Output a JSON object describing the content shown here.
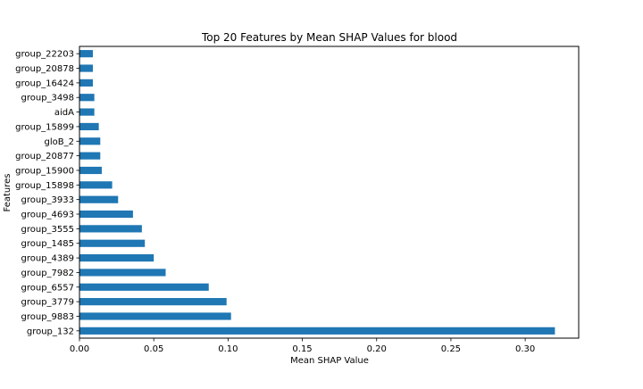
{
  "chart_data": {
    "type": "bar",
    "orientation": "horizontal",
    "title": "Top 20 Features by Mean SHAP Values for blood",
    "xlabel": "Mean SHAP Value",
    "ylabel": "Features",
    "categories": [
      "group_132",
      "group_9883",
      "group_3779",
      "group_6557",
      "group_7982",
      "group_4389",
      "group_1485",
      "group_3555",
      "group_4693",
      "group_3933",
      "group_15898",
      "group_15900",
      "group_20877",
      "gloB_2",
      "group_15899",
      "aidA",
      "group_3498",
      "group_16424",
      "group_20878",
      "group_22203"
    ],
    "values": [
      0.32,
      0.102,
      0.099,
      0.087,
      0.058,
      0.05,
      0.044,
      0.042,
      0.036,
      0.026,
      0.022,
      0.015,
      0.014,
      0.014,
      0.013,
      0.01,
      0.01,
      0.009,
      0.009,
      0.009
    ],
    "xlim": [
      0,
      0.336
    ],
    "xticks": [
      0.0,
      0.05,
      0.1,
      0.15,
      0.2,
      0.25,
      0.3
    ],
    "xtick_labels": [
      "0.00",
      "0.05",
      "0.10",
      "0.15",
      "0.20",
      "0.25",
      "0.30"
    ],
    "grid": false,
    "legend": "none",
    "bar_color": "#1f77b4"
  }
}
